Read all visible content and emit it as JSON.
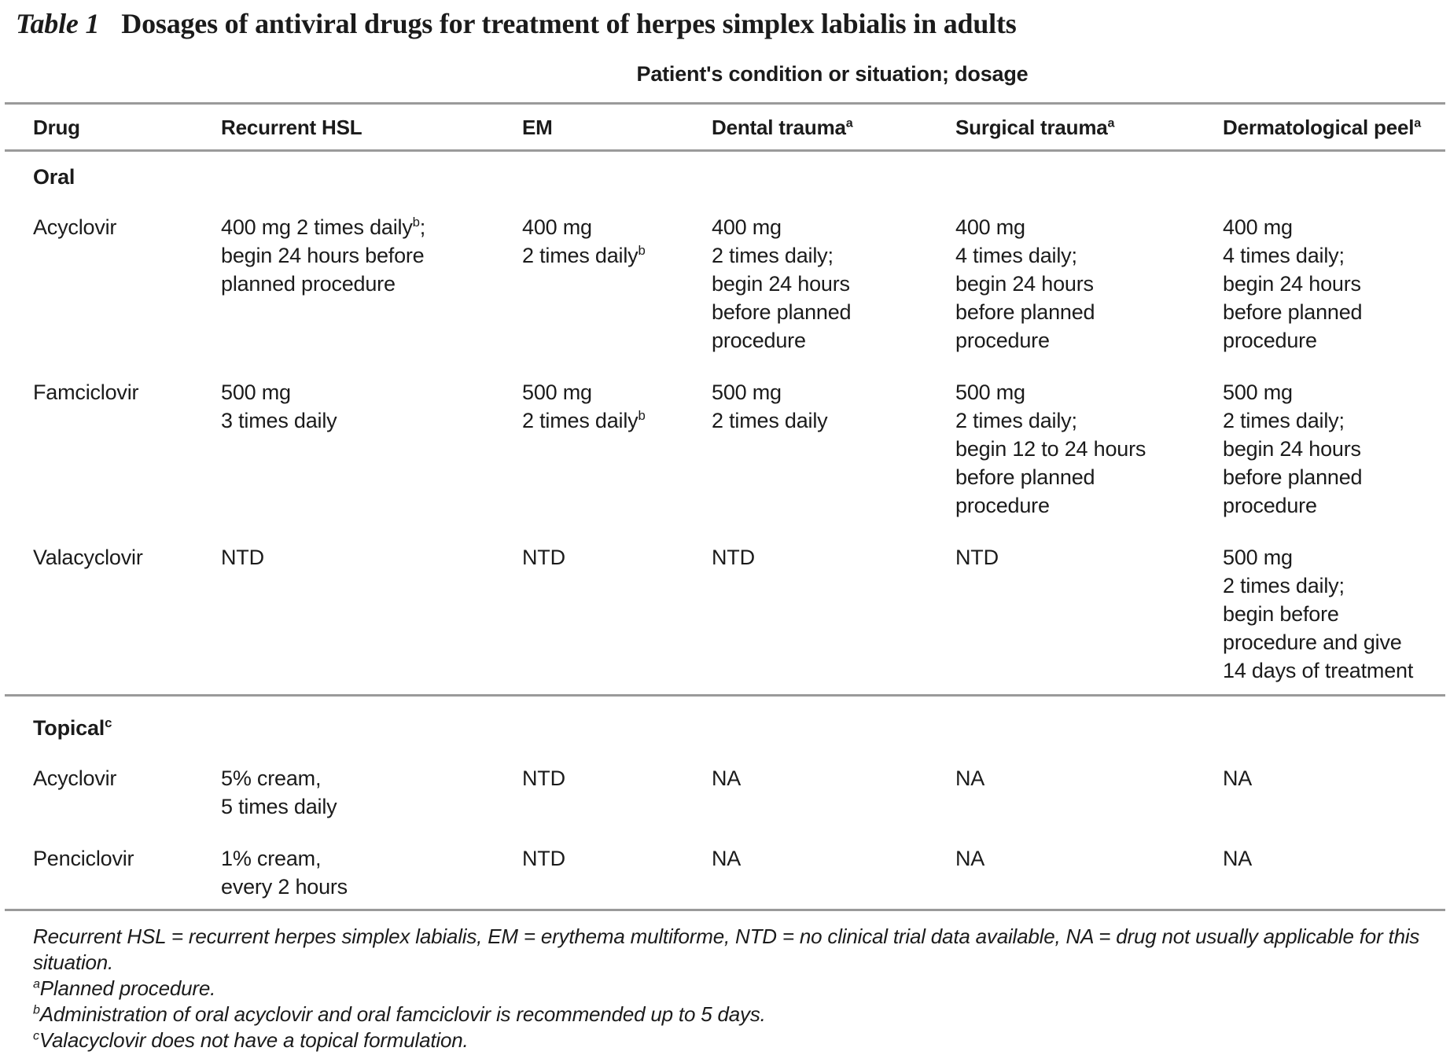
{
  "title": {
    "tag": "Table 1",
    "text": "Dosages of antiviral drugs for treatment of herpes simplex labialis in adults"
  },
  "spanner": "Patient's condition or situation; dosage",
  "table": {
    "columns": [
      "Drug",
      "Recurrent HSL",
      "EM",
      "Dental trauma^a",
      "Surgical trauma^a",
      "Dermatological peel^a"
    ],
    "sections": [
      {
        "label": "Oral",
        "rows": [
          {
            "drug": "Acyclovir",
            "cells": [
              [
                "400 mg 2 times daily^b;",
                "begin 24 hours before",
                "planned procedure"
              ],
              [
                "400 mg",
                "2 times daily^b"
              ],
              [
                "400 mg",
                "2 times daily;",
                "begin 24 hours",
                "before planned",
                "procedure"
              ],
              [
                "400 mg",
                "4 times daily;",
                "begin 24 hours",
                "before planned",
                "procedure"
              ],
              [
                "400 mg",
                "4 times daily;",
                "begin 24 hours",
                "before planned",
                "procedure"
              ]
            ]
          },
          {
            "drug": "Famciclovir",
            "cells": [
              [
                "500 mg",
                "3 times daily"
              ],
              [
                "500 mg",
                "2 times daily^b"
              ],
              [
                "500 mg",
                "2 times daily"
              ],
              [
                "500 mg",
                "2 times daily;",
                "begin 12 to 24 hours",
                "before planned",
                "procedure"
              ],
              [
                "500 mg",
                "2 times daily;",
                "begin 24 hours",
                "before planned",
                "procedure"
              ]
            ]
          },
          {
            "drug": "Valacyclovir",
            "cells": [
              [
                "NTD"
              ],
              [
                "NTD"
              ],
              [
                "NTD"
              ],
              [
                "NTD"
              ],
              [
                "500 mg",
                "2 times daily;",
                "begin before",
                "procedure and give",
                "14 days of treatment"
              ]
            ]
          }
        ]
      },
      {
        "label": "Topical^c",
        "rows": [
          {
            "drug": "Acyclovir",
            "cells": [
              [
                "5% cream,",
                "5 times daily"
              ],
              [
                "NTD"
              ],
              [
                "NA"
              ],
              [
                "NA"
              ],
              [
                "NA"
              ]
            ]
          },
          {
            "drug": "Penciclovir",
            "cells": [
              [
                "1% cream,",
                "every 2 hours"
              ],
              [
                "NTD"
              ],
              [
                "NA"
              ],
              [
                "NA"
              ],
              [
                "NA"
              ]
            ]
          }
        ]
      }
    ]
  },
  "footnotes": [
    "Recurrent HSL = recurrent herpes simplex labialis, EM = erythema multiforme, NTD = no clinical trial data available, NA = drug not usually applicable for this situation.",
    "^aPlanned procedure.",
    "^bAdministration of oral acyclovir and oral famciclovir is recommended up to 5 days.",
    "^cValacyclovir does not have a topical formulation."
  ],
  "colors": {
    "text": "#1b1b1b",
    "rule": "#9a9a9a"
  }
}
